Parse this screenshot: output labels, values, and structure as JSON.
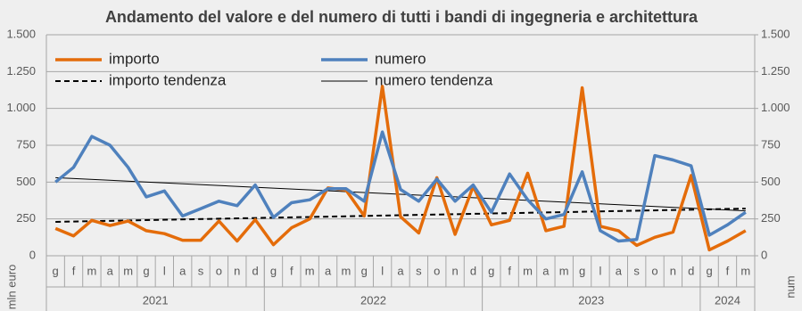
{
  "chart_data": {
    "type": "line",
    "title": "Andamento del valore e del numero di tutti i bandi di ingegneria e architettura",
    "y_label": "mln euro",
    "y2_label": "num",
    "categories": [
      "g",
      "f",
      "m",
      "a",
      "m",
      "g",
      "l",
      "a",
      "s",
      "o",
      "n",
      "d",
      "g",
      "f",
      "m",
      "a",
      "m",
      "g",
      "l",
      "a",
      "s",
      "o",
      "n",
      "d",
      "g",
      "f",
      "m",
      "a",
      "m",
      "g",
      "l",
      "a",
      "s",
      "o",
      "n",
      "d",
      "g",
      "f",
      "m"
    ],
    "year_groups": [
      {
        "label": "2021",
        "size": 12
      },
      {
        "label": "2022",
        "size": 12
      },
      {
        "label": "2023",
        "size": 12
      },
      {
        "label": "2024",
        "size": 3
      }
    ],
    "ylim": [
      0,
      1500
    ],
    "yticks": [
      0,
      250,
      500,
      750,
      {
        "value": 1000,
        "label": "1.000"
      },
      {
        "value": 1250,
        "label": "1.250"
      },
      {
        "value": 1500,
        "label": "1.500"
      }
    ],
    "y2lim": [
      0,
      1500
    ],
    "y2ticks": [
      0,
      250,
      500,
      750,
      {
        "value": 1000,
        "label": "1.000"
      },
      {
        "value": 1250,
        "label": "1.250"
      },
      {
        "value": 1500,
        "label": "1.500"
      }
    ],
    "grid": true,
    "series": [
      {
        "name": "importo",
        "color": "#e46c0a",
        "width": 3.5,
        "values": [
          185,
          135,
          240,
          205,
          235,
          170,
          150,
          105,
          105,
          235,
          100,
          245,
          75,
          190,
          250,
          460,
          445,
          270,
          1150,
          265,
          155,
          530,
          145,
          470,
          210,
          240,
          560,
          170,
          200,
          1140,
          200,
          170,
          70,
          125,
          160,
          545,
          40,
          100,
          170
        ]
      },
      {
        "name": "numero",
        "color": "#4f81bd",
        "width": 3.5,
        "axis": "y2",
        "values": [
          500,
          600,
          810,
          750,
          600,
          400,
          440,
          270,
          320,
          370,
          340,
          480,
          260,
          360,
          380,
          455,
          455,
          370,
          840,
          450,
          370,
          520,
          370,
          480,
          295,
          555,
          380,
          250,
          280,
          570,
          170,
          100,
          110,
          680,
          650,
          610,
          140,
          210,
          295
        ]
      }
    ],
    "trends": [
      {
        "name": "importo tendenza",
        "color": "#000000",
        "dash": true,
        "start": 230,
        "end": 320
      },
      {
        "name": "numero tendenza",
        "color": "#000000",
        "dash": false,
        "axis": "y2",
        "start": 530,
        "end": 305
      }
    ]
  }
}
